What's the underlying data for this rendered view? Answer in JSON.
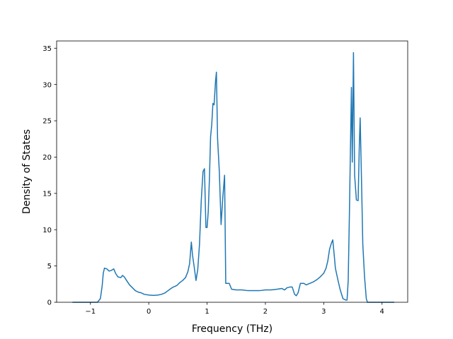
{
  "chart_data": {
    "type": "line",
    "title": "",
    "xlabel": "Frequency (THz)",
    "ylabel": "Density of States",
    "xlim": [
      -1.58,
      4.44
    ],
    "ylim": [
      0,
      36
    ],
    "x_ticks": [
      -1,
      0,
      1,
      2,
      3,
      4
    ],
    "x_tick_labels": [
      "−1",
      "0",
      "1",
      "2",
      "3",
      "4"
    ],
    "y_ticks": [
      0,
      5,
      10,
      15,
      20,
      25,
      30,
      35
    ],
    "y_tick_labels": [
      "0",
      "5",
      "10",
      "15",
      "20",
      "25",
      "30",
      "35"
    ],
    "grid": false,
    "legend": "none",
    "series": [
      {
        "color": "#1f77b4",
        "points": [
          [
            -1.3,
            0
          ],
          [
            -0.98,
            0
          ],
          [
            -0.88,
            0
          ],
          [
            -0.83,
            0.5
          ],
          [
            -0.8,
            2.2
          ],
          [
            -0.78,
            4.0
          ],
          [
            -0.76,
            4.7
          ],
          [
            -0.72,
            4.6
          ],
          [
            -0.68,
            4.3
          ],
          [
            -0.64,
            4.4
          ],
          [
            -0.6,
            4.6
          ],
          [
            -0.57,
            4.0
          ],
          [
            -0.53,
            3.5
          ],
          [
            -0.48,
            3.4
          ],
          [
            -0.45,
            3.7
          ],
          [
            -0.42,
            3.5
          ],
          [
            -0.38,
            3.0
          ],
          [
            -0.33,
            2.4
          ],
          [
            -0.28,
            2.0
          ],
          [
            -0.23,
            1.6
          ],
          [
            -0.18,
            1.4
          ],
          [
            -0.13,
            1.3
          ],
          [
            -0.08,
            1.1
          ],
          [
            0.0,
            1.0
          ],
          [
            0.08,
            0.95
          ],
          [
            0.16,
            1.0
          ],
          [
            0.22,
            1.1
          ],
          [
            0.28,
            1.3
          ],
          [
            0.33,
            1.6
          ],
          [
            0.38,
            1.9
          ],
          [
            0.42,
            2.1
          ],
          [
            0.48,
            2.3
          ],
          [
            0.53,
            2.7
          ],
          [
            0.58,
            3.0
          ],
          [
            0.63,
            3.4
          ],
          [
            0.67,
            4.2
          ],
          [
            0.7,
            5.3
          ],
          [
            0.73,
            8.3
          ],
          [
            0.75,
            6.5
          ],
          [
            0.78,
            4.8
          ],
          [
            0.81,
            3.0
          ],
          [
            0.84,
            4.5
          ],
          [
            0.87,
            8.0
          ],
          [
            0.9,
            14.0
          ],
          [
            0.93,
            18.0
          ],
          [
            0.955,
            18.4
          ],
          [
            0.98,
            10.3
          ],
          [
            1.0,
            10.3
          ],
          [
            1.02,
            12.5
          ],
          [
            1.04,
            17.0
          ],
          [
            1.06,
            22.8
          ],
          [
            1.08,
            24.5
          ],
          [
            1.1,
            27.4
          ],
          [
            1.12,
            27.2
          ],
          [
            1.145,
            30.5
          ],
          [
            1.16,
            31.7
          ],
          [
            1.18,
            22.5
          ],
          [
            1.21,
            18.0
          ],
          [
            1.24,
            10.7
          ],
          [
            1.27,
            14.5
          ],
          [
            1.3,
            17.5
          ],
          [
            1.32,
            2.6
          ],
          [
            1.38,
            2.6
          ],
          [
            1.42,
            1.8
          ],
          [
            1.5,
            1.7
          ],
          [
            1.6,
            1.7
          ],
          [
            1.7,
            1.6
          ],
          [
            1.8,
            1.6
          ],
          [
            1.9,
            1.6
          ],
          [
            2.0,
            1.7
          ],
          [
            2.1,
            1.7
          ],
          [
            2.2,
            1.8
          ],
          [
            2.28,
            1.9
          ],
          [
            2.33,
            1.7
          ],
          [
            2.37,
            2.0
          ],
          [
            2.42,
            2.1
          ],
          [
            2.46,
            2.1
          ],
          [
            2.5,
            1.1
          ],
          [
            2.53,
            0.9
          ],
          [
            2.56,
            1.3
          ],
          [
            2.6,
            2.6
          ],
          [
            2.66,
            2.6
          ],
          [
            2.7,
            2.4
          ],
          [
            2.76,
            2.6
          ],
          [
            2.82,
            2.8
          ],
          [
            2.88,
            3.1
          ],
          [
            2.94,
            3.5
          ],
          [
            3.0,
            4.0
          ],
          [
            3.04,
            4.7
          ],
          [
            3.07,
            5.7
          ],
          [
            3.1,
            7.3
          ],
          [
            3.13,
            8.1
          ],
          [
            3.155,
            8.6
          ],
          [
            3.18,
            6.5
          ],
          [
            3.2,
            4.7
          ],
          [
            3.24,
            3.2
          ],
          [
            3.28,
            1.8
          ],
          [
            3.33,
            0.5
          ],
          [
            3.38,
            0.3
          ],
          [
            3.4,
            0.3
          ],
          [
            3.42,
            3.0
          ],
          [
            3.44,
            12.0
          ],
          [
            3.46,
            22.0
          ],
          [
            3.475,
            29.6
          ],
          [
            3.49,
            19.3
          ],
          [
            3.51,
            34.4
          ],
          [
            3.53,
            17.5
          ],
          [
            3.56,
            14.1
          ],
          [
            3.59,
            14.0
          ],
          [
            3.61,
            21.5
          ],
          [
            3.625,
            25.4
          ],
          [
            3.65,
            16.0
          ],
          [
            3.67,
            8.0
          ],
          [
            3.7,
            3.5
          ],
          [
            3.73,
            0.5
          ],
          [
            3.75,
            0
          ],
          [
            3.85,
            0
          ],
          [
            4.0,
            0
          ],
          [
            4.1,
            0
          ],
          [
            4.2,
            0
          ]
        ]
      }
    ]
  }
}
